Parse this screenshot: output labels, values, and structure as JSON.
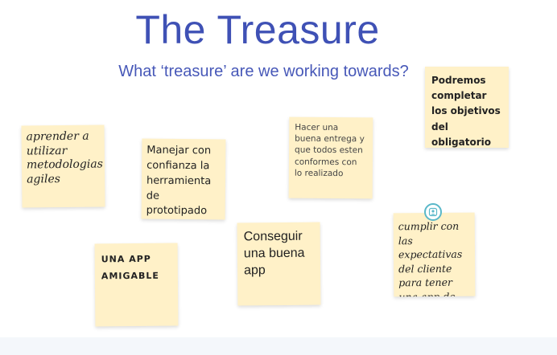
{
  "board": {
    "title": "The Treasure",
    "subtitle": "What ‘treasure’ are we working towards?",
    "accent_color": "#3f51b5",
    "note_color": "#fff1c8"
  },
  "notes": [
    {
      "text": "aprender a utilizar metodologias agiles"
    },
    {
      "text": "Manejar con confianza la herramienta de prototipado"
    },
    {
      "text": "UNA APP AMIGABLE"
    },
    {
      "text": "Conseguir una buena app"
    },
    {
      "text": "Hacer una buena entrega y que todos esten conformes con lo realizado"
    },
    {
      "text": "Podremos completar los objetivos del obligatorio"
    },
    {
      "text": "cumplir con las expectativas del cliente para tener una app de calidad"
    }
  ],
  "avatar": {
    "icon": "user-avatar-icon",
    "color": "#5ab8c9"
  }
}
